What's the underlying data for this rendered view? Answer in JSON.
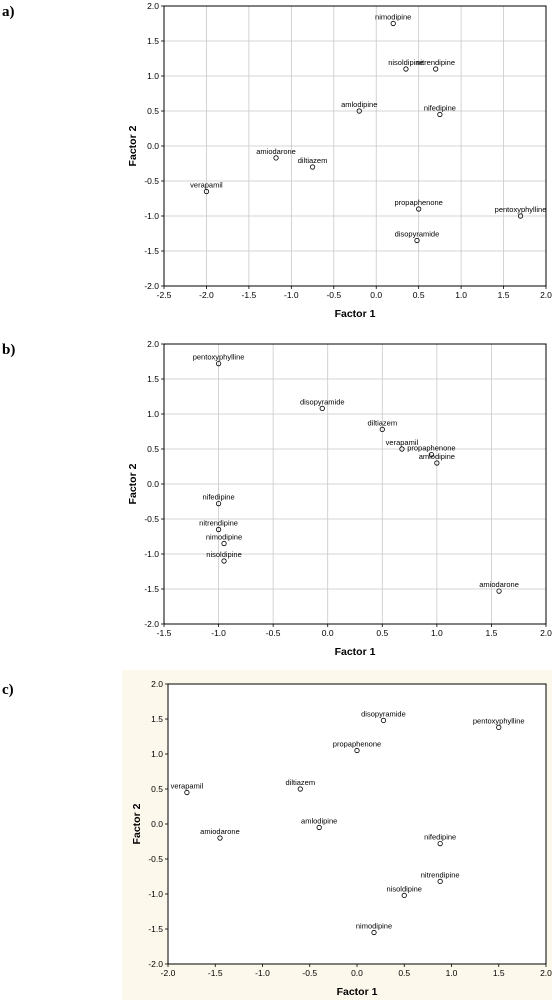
{
  "chart_data": [
    {
      "panel_label": "a)",
      "type": "scatter",
      "xlabel": "Factor 1",
      "ylabel": "Factor 2",
      "xlim": [
        -2.5,
        2.0
      ],
      "ylim": [
        -2.0,
        2.0
      ],
      "xticks": [
        "-2.5",
        "-2.0",
        "-1.5",
        "-1.0",
        "-0.5",
        "0.0",
        "0.5",
        "1.0",
        "1.5",
        "2.0"
      ],
      "yticks": [
        "-2.0",
        "-1.5",
        "-1.0",
        "-0.5",
        "0.0",
        "0.5",
        "1.0",
        "1.5",
        "2.0"
      ],
      "grid": true,
      "background": "#ffffff",
      "points": [
        {
          "label": "nimodipine",
          "x": 0.2,
          "y": 1.75
        },
        {
          "label": "nisoldipine",
          "x": 0.35,
          "y": 1.1
        },
        {
          "label": "nitrendipine",
          "x": 0.7,
          "y": 1.1
        },
        {
          "label": "amlodipine",
          "x": -0.2,
          "y": 0.5
        },
        {
          "label": "nifedipine",
          "x": 0.75,
          "y": 0.45
        },
        {
          "label": "amiodarone",
          "x": -1.18,
          "y": -0.17
        },
        {
          "label": "diltiazem",
          "x": -0.75,
          "y": -0.3
        },
        {
          "label": "verapamil",
          "x": -2.0,
          "y": -0.65
        },
        {
          "label": "propaphenone",
          "x": 0.5,
          "y": -0.9
        },
        {
          "label": "pentoxyphylline",
          "x": 1.7,
          "y": -1.0
        },
        {
          "label": "disopyramide",
          "x": 0.48,
          "y": -1.35
        }
      ]
    },
    {
      "panel_label": "b)",
      "type": "scatter",
      "xlabel": "Factor 1",
      "ylabel": "Factor 2",
      "xlim": [
        -1.5,
        2.0
      ],
      "ylim": [
        -2.0,
        2.0
      ],
      "xticks": [
        "-1.5",
        "-1.0",
        "-0.5",
        "0.0",
        "0.5",
        "1.0",
        "1.5",
        "2.0"
      ],
      "yticks": [
        "-2.0",
        "-1.5",
        "-1.0",
        "-0.5",
        "0.0",
        "0.5",
        "1.0",
        "1.5",
        "2.0"
      ],
      "grid": true,
      "background": "#ffffff",
      "points": [
        {
          "label": "pentoxyphylline",
          "x": -1.0,
          "y": 1.72
        },
        {
          "label": "disopyramide",
          "x": -0.05,
          "y": 1.08
        },
        {
          "label": "diltiazem",
          "x": 0.5,
          "y": 0.78
        },
        {
          "label": "verapamil",
          "x": 0.68,
          "y": 0.5
        },
        {
          "label": "propaphenone",
          "x": 0.95,
          "y": 0.42
        },
        {
          "label": "amlodipine",
          "x": 1.0,
          "y": 0.3
        },
        {
          "label": "nifedipine",
          "x": -1.0,
          "y": -0.28
        },
        {
          "label": "nitrendipine",
          "x": -1.0,
          "y": -0.65
        },
        {
          "label": "nimodipine",
          "x": -0.95,
          "y": -0.85
        },
        {
          "label": "nisoldipine",
          "x": -0.95,
          "y": -1.1
        },
        {
          "label": "amiodarone",
          "x": 1.57,
          "y": -1.53
        }
      ]
    },
    {
      "panel_label": "c)",
      "type": "scatter",
      "xlabel": "Factor 1",
      "ylabel": "Factor 2",
      "xlim": [
        -2.0,
        2.0
      ],
      "ylim": [
        -2.0,
        2.0
      ],
      "xticks": [
        "-2.0",
        "-1.5",
        "-1.0",
        "-0.5",
        "0.0",
        "0.5",
        "1.0",
        "1.5",
        "2.0"
      ],
      "yticks": [
        "-2.0",
        "-1.5",
        "-1.0",
        "-0.5",
        "0.0",
        "0.5",
        "1.0",
        "1.5",
        "2.0"
      ],
      "grid": false,
      "background": "#fdf8ec",
      "points": [
        {
          "label": "disopyramide",
          "x": 0.28,
          "y": 1.48
        },
        {
          "label": "pentoxyphylline",
          "x": 1.5,
          "y": 1.38
        },
        {
          "label": "propaphenone",
          "x": 0.0,
          "y": 1.05
        },
        {
          "label": "verapamil",
          "x": -1.8,
          "y": 0.45
        },
        {
          "label": "diltiazem",
          "x": -0.6,
          "y": 0.5
        },
        {
          "label": "amlodipine",
          "x": -0.4,
          "y": -0.05
        },
        {
          "label": "amiodarone",
          "x": -1.45,
          "y": -0.2
        },
        {
          "label": "nifedipine",
          "x": 0.88,
          "y": -0.28
        },
        {
          "label": "nitrendipine",
          "x": 0.88,
          "y": -0.82
        },
        {
          "label": "nisoldipine",
          "x": 0.5,
          "y": -1.02
        },
        {
          "label": "nimodipine",
          "x": 0.18,
          "y": -1.55
        }
      ]
    }
  ]
}
